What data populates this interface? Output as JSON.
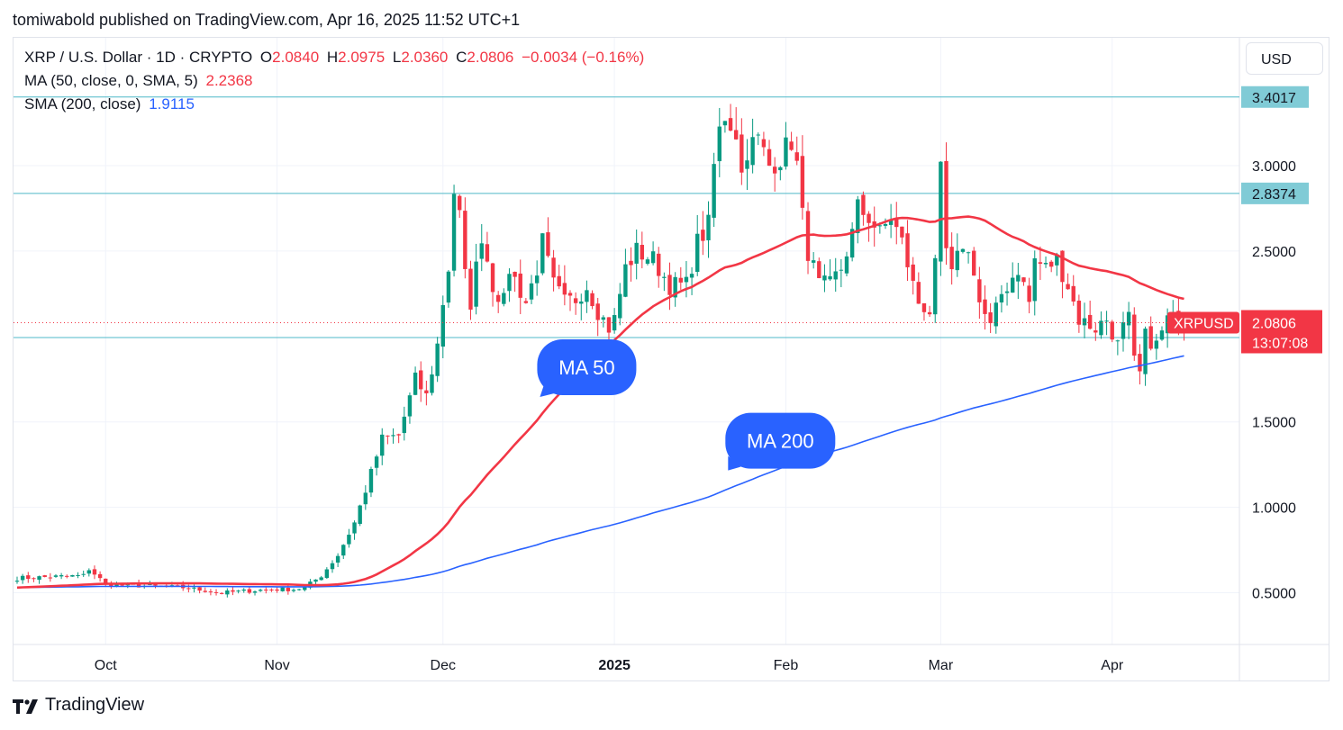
{
  "publisher": "tomiwabold published on TradingView.com, Apr 16, 2025 11:52 UTC+1",
  "legend": {
    "symbol": "XRP / U.S. Dollar · 1D · CRYPTO",
    "o_label": "O",
    "o_value": "2.0840",
    "h_label": "H",
    "h_value": "2.0975",
    "l_label": "L",
    "l_value": "2.0360",
    "c_label": "C",
    "c_value": "2.0806",
    "change": "−0.0034 (−0.16%)",
    "ma_label": "MA (50, close, 0, SMA, 5)",
    "ma_value": "2.2368",
    "sma_label": "SMA (200, close)",
    "sma_value": "1.9115"
  },
  "currency_button": "USD",
  "footer_brand": "TradingView",
  "colors": {
    "up": "#089981",
    "down": "#f23645",
    "ma50": "#f23645",
    "ma200": "#2962ff",
    "hline": "#4fb8c8",
    "hline_badge": "#80cbd6",
    "annotation": "#2962ff"
  },
  "chart_data": {
    "type": "candlestick",
    "ylim": [
      0.2,
      3.52
    ],
    "y_ticks": [
      "0.5000",
      "1.0000",
      "1.5000",
      "2.5000",
      "3.0000"
    ],
    "x_ticks": [
      {
        "label": "Oct",
        "day": 16
      },
      {
        "label": "Nov",
        "day": 47
      },
      {
        "label": "Dec",
        "day": 77
      },
      {
        "label": "2025",
        "day": 108,
        "bold": true
      },
      {
        "label": "Feb",
        "day": 139
      },
      {
        "label": "Mar",
        "day": 167
      },
      {
        "label": "Apr",
        "day": 198
      }
    ],
    "horizontal_lines": [
      3.4017,
      2.8374,
      1.9935
    ],
    "price_badges": [
      {
        "label": "3.4017",
        "value": 3.4017
      },
      {
        "label": "2.8374",
        "value": 2.8374
      },
      {
        "label": "1.9935",
        "value": 1.9935
      }
    ],
    "last_price": {
      "symbol": "XRPUSD",
      "value": "2.0806",
      "price": 2.0806,
      "countdown": "13:07:08"
    },
    "annotations": [
      {
        "text": "MA 50",
        "day": 103,
        "price": 1.82
      },
      {
        "text": "MA 200",
        "day": 138,
        "price": 1.39
      }
    ],
    "key_points": [
      [
        0,
        0.585
      ],
      [
        12,
        0.6
      ],
      [
        13,
        0.64
      ],
      [
        16,
        0.55
      ],
      [
        30,
        0.53
      ],
      [
        37,
        0.5
      ],
      [
        46,
        0.52
      ],
      [
        50,
        0.52
      ],
      [
        52,
        0.53
      ],
      [
        55,
        0.6
      ],
      [
        58,
        0.72
      ],
      [
        61,
        0.91
      ],
      [
        63,
        1.1
      ],
      [
        66,
        1.4
      ],
      [
        69,
        1.42
      ],
      [
        72,
        1.75
      ],
      [
        74,
        1.65
      ],
      [
        76,
        1.95
      ],
      [
        77,
        2.2
      ],
      [
        78,
        2.4
      ],
      [
        79,
        2.85
      ],
      [
        80,
        2.7
      ],
      [
        81,
        2.35
      ],
      [
        82,
        2.2
      ],
      [
        83,
        2.4
      ],
      [
        84,
        2.6
      ],
      [
        86,
        2.3
      ],
      [
        88,
        2.2
      ],
      [
        89,
        2.4
      ],
      [
        92,
        2.2
      ],
      [
        94,
        2.4
      ],
      [
        95,
        2.55
      ],
      [
        97,
        2.3
      ],
      [
        99,
        2.2
      ],
      [
        101,
        2.22
      ],
      [
        103,
        2.3
      ],
      [
        105,
        2.15
      ],
      [
        107,
        2.05
      ],
      [
        108,
        2.1
      ],
      [
        110,
        2.4
      ],
      [
        112,
        2.5
      ],
      [
        115,
        2.45
      ],
      [
        118,
        2.3
      ],
      [
        121,
        2.3
      ],
      [
        123,
        2.55
      ],
      [
        125,
        2.65
      ],
      [
        126,
        3.0
      ],
      [
        127,
        3.2
      ],
      [
        128,
        3.3
      ],
      [
        130,
        3.2
      ],
      [
        131,
        2.95
      ],
      [
        132,
        3.1
      ],
      [
        134,
        3.15
      ],
      [
        136,
        3.0
      ],
      [
        138,
        3.05
      ],
      [
        140,
        3.15
      ],
      [
        141,
        3.0
      ],
      [
        142,
        2.7
      ],
      [
        143,
        2.5
      ],
      [
        145,
        2.3
      ],
      [
        147,
        2.3
      ],
      [
        149,
        2.4
      ],
      [
        151,
        2.6
      ],
      [
        152,
        2.75
      ],
      [
        154,
        2.7
      ],
      [
        156,
        2.6
      ],
      [
        158,
        2.7
      ],
      [
        160,
        2.55
      ],
      [
        162,
        2.3
      ],
      [
        163,
        2.2
      ],
      [
        165,
        2.15
      ],
      [
        166,
        2.4
      ],
      [
        167,
        2.95
      ],
      [
        168,
        2.5
      ],
      [
        169,
        2.35
      ],
      [
        171,
        2.55
      ],
      [
        173,
        2.4
      ],
      [
        174,
        2.2
      ],
      [
        176,
        2.05
      ],
      [
        178,
        2.25
      ],
      [
        181,
        2.4
      ],
      [
        183,
        2.2
      ],
      [
        184,
        2.45
      ],
      [
        186,
        2.4
      ],
      [
        188,
        2.45
      ],
      [
        190,
        2.3
      ],
      [
        192,
        2.1
      ],
      [
        195,
        2.05
      ],
      [
        197,
        2.1
      ],
      [
        199,
        1.95
      ],
      [
        200,
        2.05
      ],
      [
        201,
        2.1
      ],
      [
        202,
        1.85
      ],
      [
        203,
        1.78
      ],
      [
        204,
        2.0
      ],
      [
        206,
        1.95
      ],
      [
        208,
        2.1
      ],
      [
        211,
        2.08
      ]
    ],
    "series": [
      {
        "name": "MA (50, close, 0, SMA, 5)",
        "value": 2.2368
      },
      {
        "name": "SMA (200, close)",
        "value": 1.9115
      }
    ]
  }
}
